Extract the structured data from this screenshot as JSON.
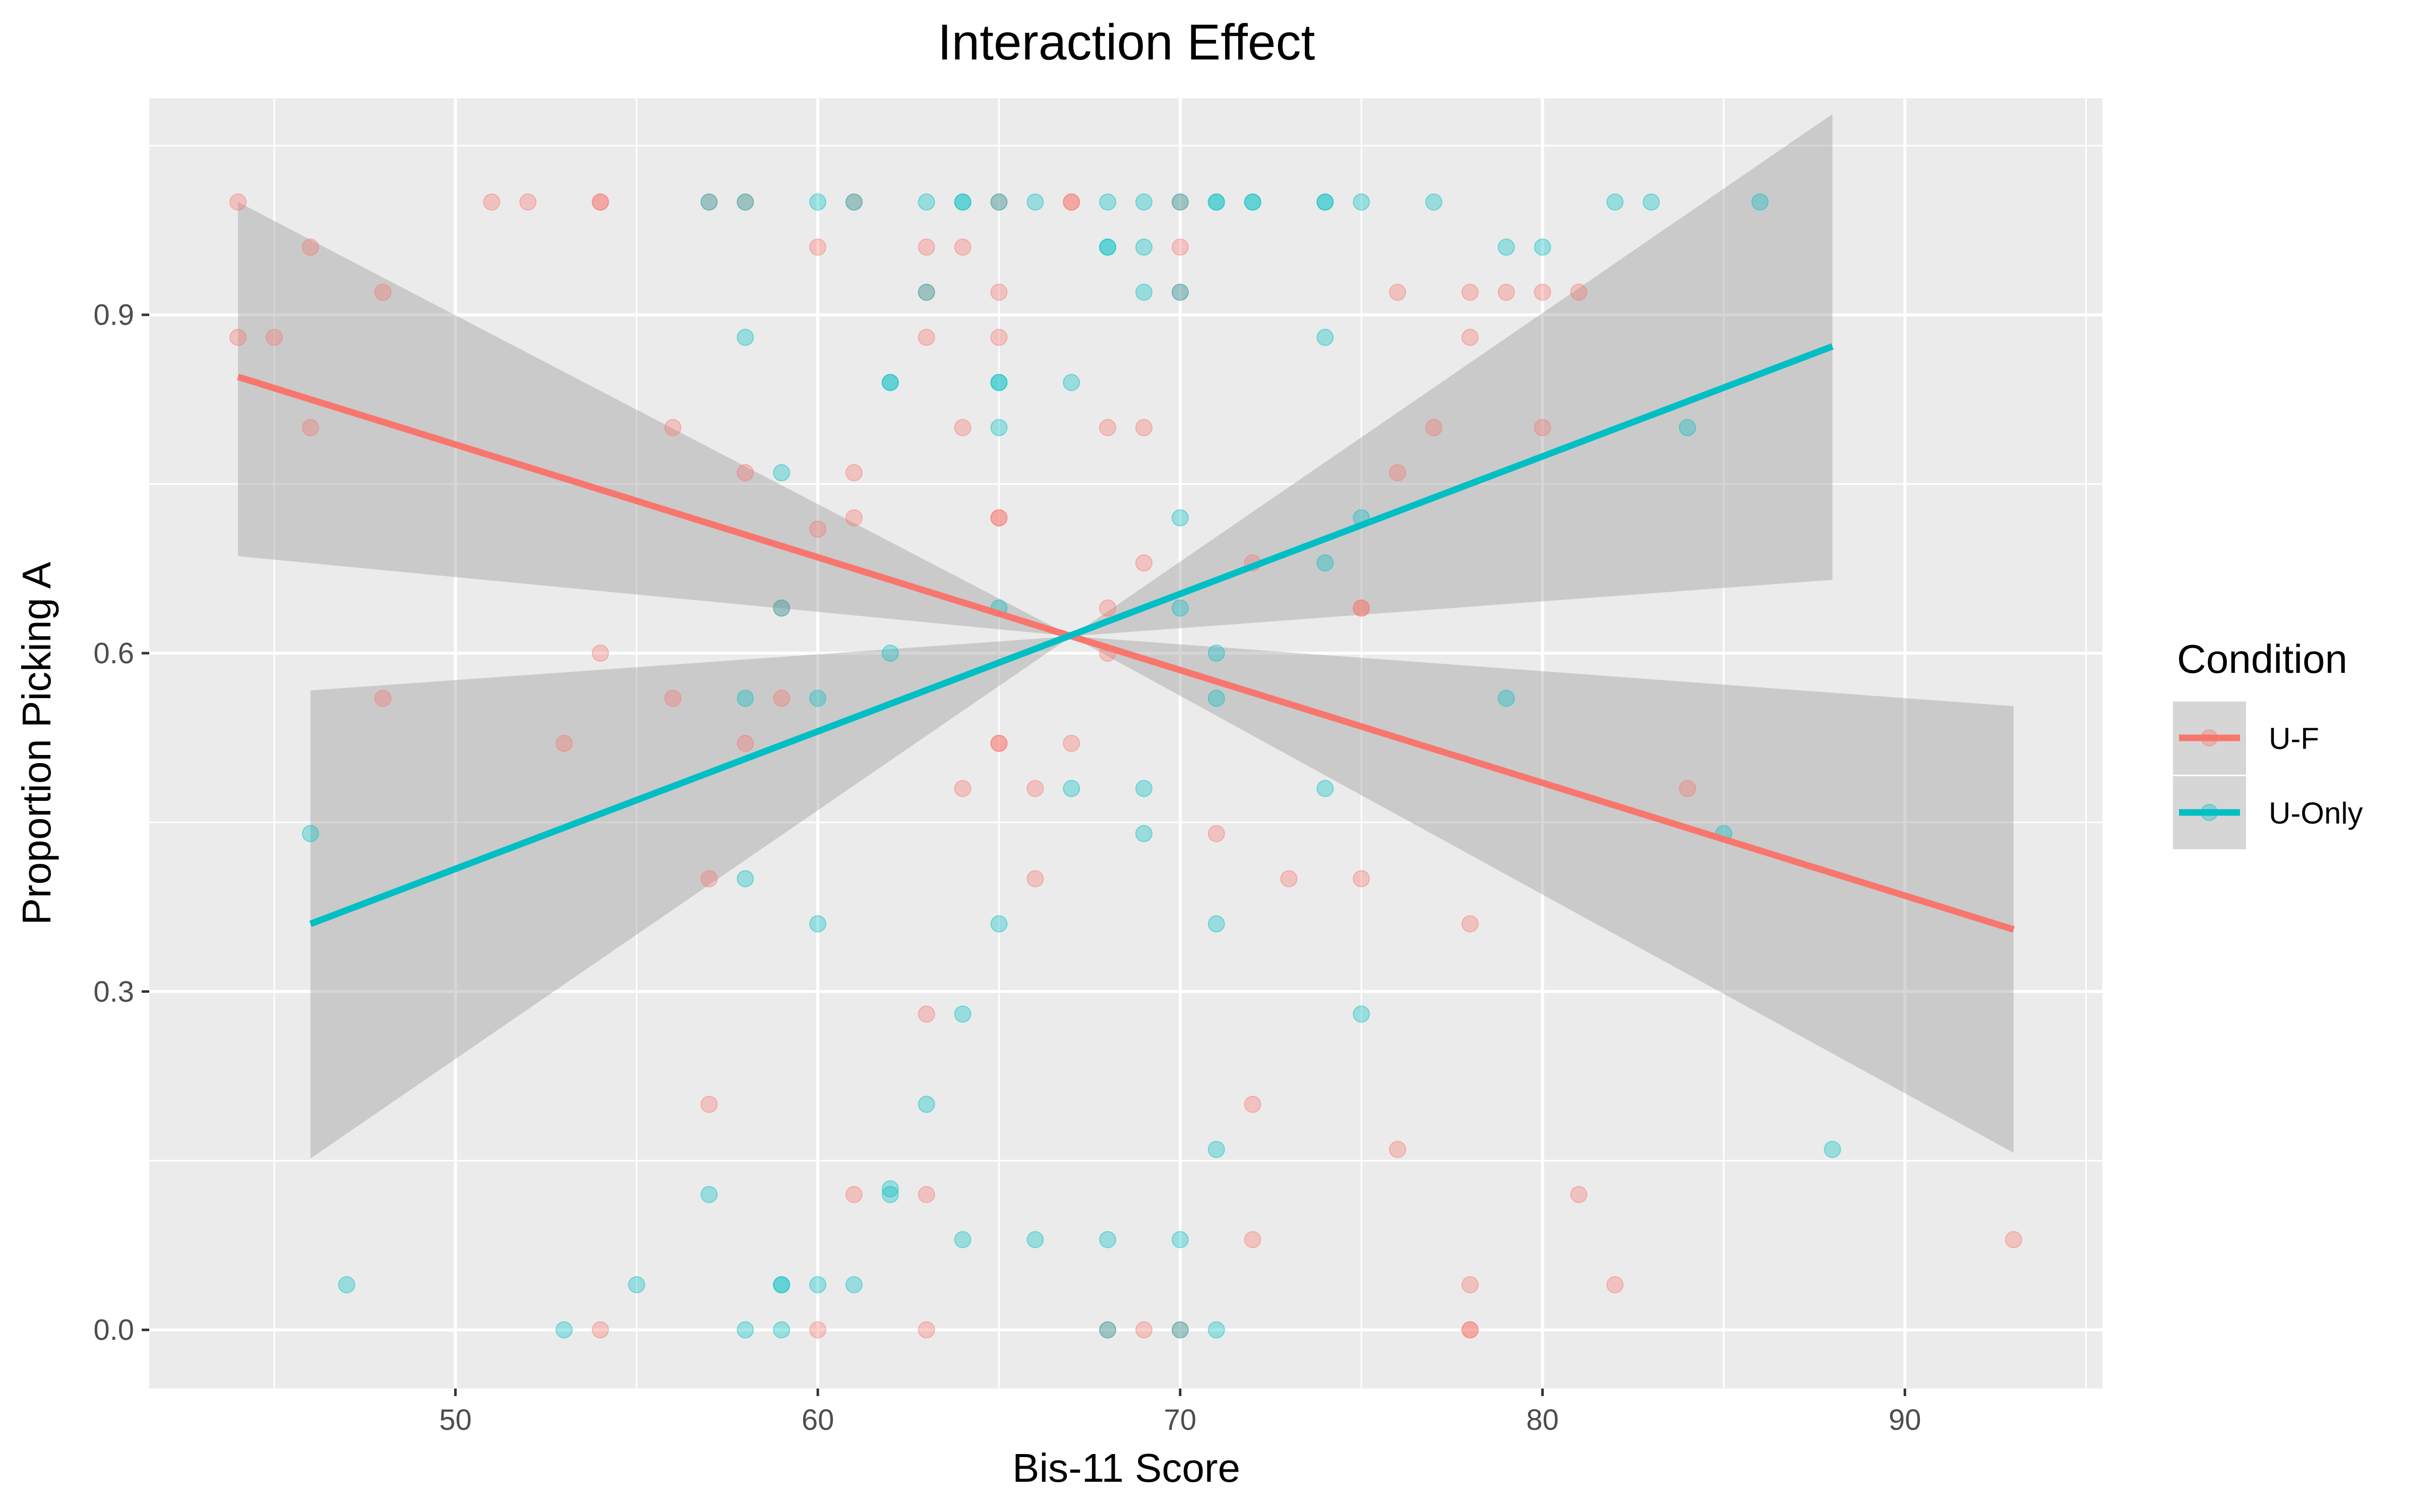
{
  "chart_data": {
    "type": "scatter",
    "title": "Interaction Effect",
    "xlabel": "Bis-11 Score",
    "ylabel": "Proportion Picking A",
    "xlim": [
      41.55,
      95.45
    ],
    "ylim": [
      -0.052,
      1.092
    ],
    "x_ticks": [
      50,
      60,
      70,
      80,
      90
    ],
    "y_ticks": [
      0.0,
      0.3,
      0.6,
      0.9
    ],
    "y_tick_labels": [
      "0.0",
      "0.3",
      "0.6",
      "0.9"
    ],
    "grid": true,
    "legend_position": "right",
    "legend_title": "Condition",
    "series": [
      {
        "name": "U-F",
        "color": "#F8766D",
        "points": [
          [
            44,
            1.0
          ],
          [
            44,
            0.88
          ],
          [
            45,
            0.88
          ],
          [
            46,
            0.96
          ],
          [
            46,
            0.8
          ],
          [
            48,
            0.92
          ],
          [
            48,
            0.56
          ],
          [
            51,
            1.0
          ],
          [
            52,
            1.0
          ],
          [
            53,
            0.52
          ],
          [
            54,
            1.0
          ],
          [
            54,
            1.0
          ],
          [
            54,
            0.0
          ],
          [
            54,
            0.6
          ],
          [
            56,
            0.8
          ],
          [
            56,
            0.56
          ],
          [
            57,
            1.0
          ],
          [
            57,
            0.4
          ],
          [
            57,
            0.2
          ],
          [
            58,
            1.0
          ],
          [
            58,
            0.76
          ],
          [
            58,
            0.52
          ],
          [
            59,
            0.56
          ],
          [
            59,
            0.64
          ],
          [
            60,
            0.96
          ],
          [
            60,
            0.71
          ],
          [
            60,
            0.0
          ],
          [
            61,
            1.0
          ],
          [
            61,
            0.76
          ],
          [
            61,
            0.72
          ],
          [
            61,
            0.12
          ],
          [
            63,
            0.96
          ],
          [
            63,
            0.92
          ],
          [
            63,
            0.88
          ],
          [
            63,
            0.28
          ],
          [
            63,
            0.12
          ],
          [
            63,
            0.0
          ],
          [
            64,
            0.96
          ],
          [
            64,
            0.8
          ],
          [
            64,
            0.48
          ],
          [
            65,
            1.0
          ],
          [
            65,
            0.92
          ],
          [
            65,
            0.88
          ],
          [
            65,
            0.72
          ],
          [
            65,
            0.72
          ],
          [
            65,
            0.52
          ],
          [
            65,
            0.52
          ],
          [
            66,
            0.48
          ],
          [
            66,
            0.4
          ],
          [
            67,
            1.0
          ],
          [
            67,
            1.0
          ],
          [
            67,
            0.52
          ],
          [
            68,
            0.8
          ],
          [
            68,
            0.64
          ],
          [
            68,
            0.6
          ],
          [
            68,
            0.0
          ],
          [
            69,
            0.8
          ],
          [
            69,
            0.68
          ],
          [
            69,
            0.0
          ],
          [
            70,
            1.0
          ],
          [
            70,
            0.96
          ],
          [
            70,
            0.92
          ],
          [
            70,
            0.0
          ],
          [
            71,
            0.44
          ],
          [
            72,
            0.68
          ],
          [
            72,
            0.2
          ],
          [
            72,
            0.08
          ],
          [
            73,
            0.4
          ],
          [
            75,
            0.64
          ],
          [
            75,
            0.64
          ],
          [
            75,
            0.4
          ],
          [
            76,
            0.92
          ],
          [
            76,
            0.76
          ],
          [
            76,
            0.16
          ],
          [
            77,
            0.8
          ],
          [
            78,
            0.92
          ],
          [
            78,
            0.88
          ],
          [
            78,
            0.36
          ],
          [
            78,
            0.04
          ],
          [
            78,
            0.0
          ],
          [
            78,
            0.0
          ],
          [
            79,
            0.92
          ],
          [
            80,
            0.92
          ],
          [
            80,
            0.8
          ],
          [
            81,
            0.92
          ],
          [
            81,
            0.12
          ],
          [
            82,
            0.04
          ],
          [
            84,
            0.48
          ],
          [
            93,
            0.08
          ]
        ],
        "fit": {
          "x": [
            44,
            93
          ],
          "y": [
            0.845,
            0.355
          ]
        },
        "ci_upper": [
          [
            44,
            1.0
          ],
          [
            67,
            0.615
          ],
          [
            93,
            0.553
          ]
        ],
        "ci_lower": [
          [
            44,
            0.686
          ],
          [
            67,
            0.615
          ],
          [
            93,
            0.157
          ]
        ]
      },
      {
        "name": "U-Only",
        "color": "#00BFC4",
        "points": [
          [
            46,
            0.44
          ],
          [
            47,
            0.04
          ],
          [
            53,
            0.0
          ],
          [
            55,
            0.04
          ],
          [
            57,
            1.0
          ],
          [
            57,
            0.12
          ],
          [
            58,
            1.0
          ],
          [
            58,
            0.88
          ],
          [
            58,
            0.56
          ],
          [
            58,
            0.4
          ],
          [
            58,
            0.0
          ],
          [
            59,
            0.76
          ],
          [
            59,
            0.64
          ],
          [
            59,
            0.04
          ],
          [
            59,
            0.04
          ],
          [
            59,
            0.0
          ],
          [
            60,
            1.0
          ],
          [
            60,
            0.56
          ],
          [
            60,
            0.36
          ],
          [
            60,
            0.04
          ],
          [
            61,
            1.0
          ],
          [
            61,
            0.04
          ],
          [
            62,
            0.84
          ],
          [
            62,
            0.84
          ],
          [
            62,
            0.6
          ],
          [
            62,
            0.12
          ],
          [
            62,
            0.125
          ],
          [
            63,
            1.0
          ],
          [
            63,
            0.92
          ],
          [
            63,
            0.2
          ],
          [
            64,
            1.0
          ],
          [
            64,
            1.0
          ],
          [
            64,
            0.28
          ],
          [
            64,
            0.08
          ],
          [
            65,
            1.0
          ],
          [
            65,
            0.84
          ],
          [
            65,
            0.84
          ],
          [
            65,
            0.8
          ],
          [
            65,
            0.64
          ],
          [
            65,
            0.36
          ],
          [
            66,
            1.0
          ],
          [
            66,
            0.08
          ],
          [
            67,
            0.84
          ],
          [
            67,
            0.48
          ],
          [
            68,
            1.0
          ],
          [
            68,
            0.96
          ],
          [
            68,
            0.96
          ],
          [
            68,
            0.08
          ],
          [
            68,
            0.0
          ],
          [
            69,
            1.0
          ],
          [
            69,
            0.96
          ],
          [
            69,
            0.92
          ],
          [
            69,
            0.48
          ],
          [
            69,
            0.44
          ],
          [
            70,
            1.0
          ],
          [
            70,
            0.92
          ],
          [
            70,
            0.72
          ],
          [
            70,
            0.64
          ],
          [
            70,
            0.08
          ],
          [
            70,
            0.0
          ],
          [
            71,
            1.0
          ],
          [
            71,
            1.0
          ],
          [
            71,
            0.6
          ],
          [
            71,
            0.56
          ],
          [
            71,
            0.36
          ],
          [
            71,
            0.16
          ],
          [
            71,
            0.0
          ],
          [
            72,
            1.0
          ],
          [
            72,
            1.0
          ],
          [
            74,
            1.0
          ],
          [
            74,
            1.0
          ],
          [
            74,
            0.88
          ],
          [
            74,
            0.68
          ],
          [
            74,
            0.48
          ],
          [
            75,
            1.0
          ],
          [
            75,
            0.72
          ],
          [
            75,
            0.28
          ],
          [
            77,
            1.0
          ],
          [
            79,
            0.96
          ],
          [
            79,
            0.56
          ],
          [
            80,
            0.96
          ],
          [
            82,
            1.0
          ],
          [
            83,
            1.0
          ],
          [
            84,
            0.8
          ],
          [
            85,
            0.44
          ],
          [
            86,
            1.0
          ],
          [
            88,
            0.16
          ]
        ],
        "fit": {
          "x": [
            46,
            88
          ],
          "y": [
            0.36,
            0.872
          ]
        },
        "ci_upper": [
          [
            46,
            0.567
          ],
          [
            67,
            0.615
          ],
          [
            88,
            1.078
          ]
        ],
        "ci_lower": [
          [
            46,
            0.152
          ],
          [
            67,
            0.615
          ],
          [
            88,
            0.665
          ]
        ]
      }
    ]
  }
}
